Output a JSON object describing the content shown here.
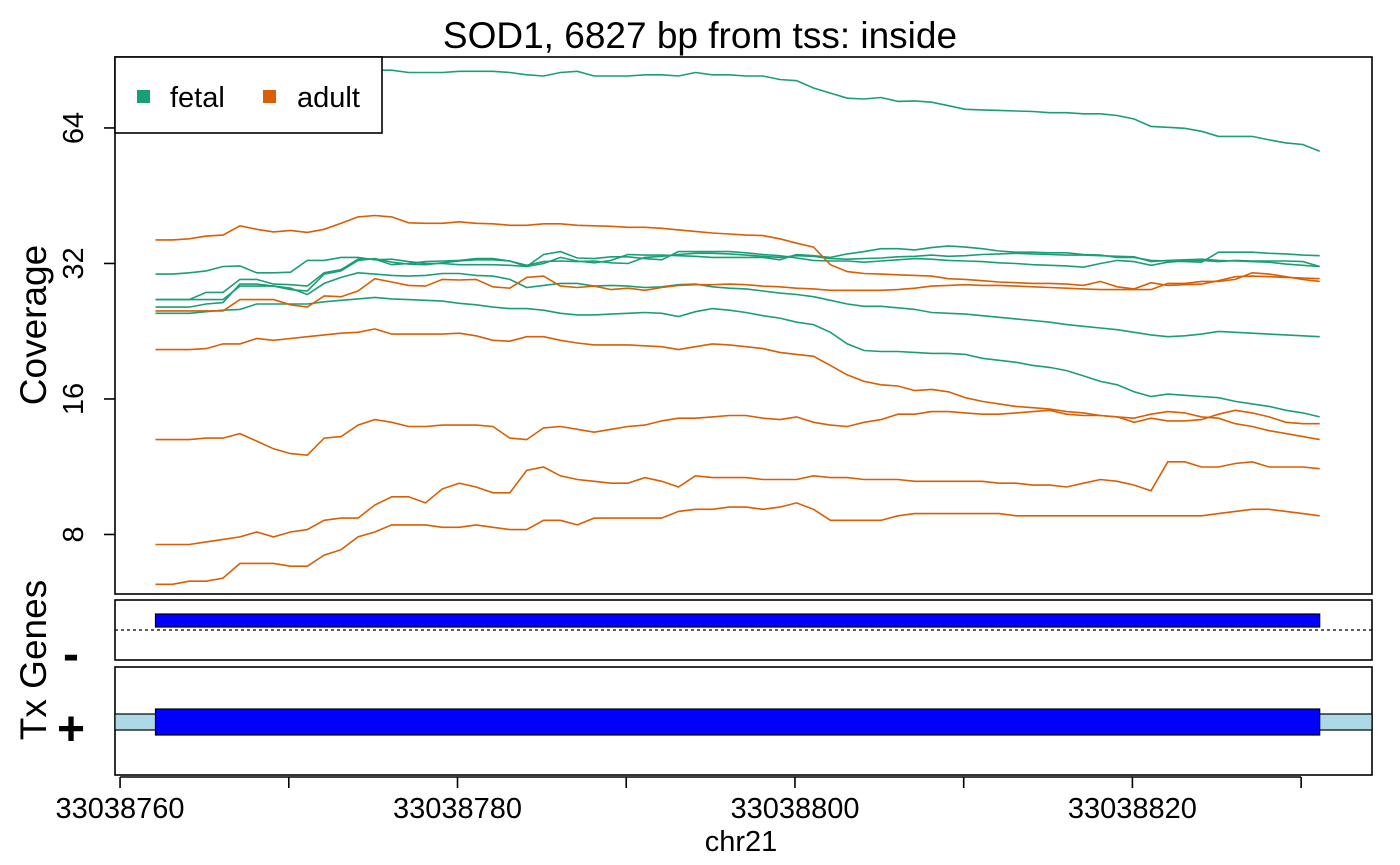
{
  "chart_data": {
    "type": "line",
    "title": "SOD1, 6827 bp from tss: inside",
    "ylabel": "Coverage",
    "xlabel": "chr21",
    "y_scale": "log2",
    "ylim": [
      5.9,
      92
    ],
    "xlim": [
      33038759.7,
      33038834.2
    ],
    "yticks": [
      8,
      16,
      32,
      64
    ],
    "ytick_labels": [
      "8",
      "16",
      "32",
      "64"
    ],
    "xticks": [
      33038760,
      33038770,
      33038780,
      33038790,
      33038800,
      33038810,
      33038820,
      33038830
    ],
    "xtick_labels": [
      "33038760",
      "",
      "33038780",
      "",
      "33038800",
      "",
      "33038820",
      ""
    ],
    "legend": {
      "position": "top-left",
      "entries": [
        {
          "label": "fetal",
          "color": "#1B9E77"
        },
        {
          "label": "adult",
          "color": "#D95F02"
        }
      ]
    },
    "x": [
      33038762.1,
      33038763.1,
      33038764.1,
      33038765.1,
      33038766.1,
      33038767.1,
      33038768.1,
      33038769.1,
      33038770.1,
      33038771.1,
      33038772.1,
      33038773.1,
      33038774.1,
      33038775.1,
      33038776.1,
      33038777.1,
      33038778.1,
      33038779.1,
      33038780.1,
      33038781.1,
      33038782.1,
      33038783.1,
      33038784.1,
      33038785.1,
      33038786.1,
      33038787.1,
      33038788.1,
      33038789.1,
      33038790.1,
      33038791.1,
      33038792.1,
      33038793.1,
      33038794.1,
      33038795.1,
      33038796.1,
      33038797.1,
      33038798.1,
      33038799.1,
      33038800.1,
      33038801.1,
      33038802.1,
      33038803.1,
      33038804.1,
      33038805.1,
      33038806.1,
      33038807.1,
      33038808.1,
      33038809.1,
      33038810.1,
      33038811.1,
      33038812.1,
      33038813.1,
      33038814.1,
      33038815.1,
      33038816.1,
      33038817.1,
      33038818.1,
      33038819.1,
      33038820.1,
      33038821.1,
      33038822.1,
      33038823.1,
      33038824.1,
      33038825.1,
      33038826.1,
      33038827.1,
      33038828.1,
      33038829.1,
      33038830.1,
      33038831.1
    ],
    "series": [
      {
        "group": "fetal",
        "color": "#1B9E77",
        "values": [
          88,
          88,
          88,
          88,
          88,
          88,
          88,
          88,
          88,
          88,
          88,
          88,
          88,
          86,
          86,
          85,
          85,
          85,
          85.5,
          85.5,
          85.5,
          85,
          84,
          83.5,
          85,
          85.5,
          83.5,
          83.5,
          83.5,
          84,
          84,
          83.5,
          85,
          84,
          84,
          83.5,
          83.5,
          82,
          81.5,
          78.5,
          76.5,
          74.5,
          74.2,
          74.8,
          73.3,
          73.5,
          73,
          71.7,
          70.4,
          70.2,
          70,
          69.8,
          69.6,
          69.2,
          69.2,
          68.8,
          68.8,
          68.2,
          67,
          64.5,
          64.2,
          63.9,
          62.9,
          61.3,
          61.3,
          61.3,
          60.2,
          59.3,
          58.8,
          56.8
        ]
      },
      {
        "group": "fetal",
        "color": "#1B9E77",
        "values": [
          30.3,
          30.3,
          30.5,
          30.8,
          31.5,
          31.6,
          30.5,
          30.5,
          30.6,
          32.5,
          32.5,
          33,
          33,
          32.6,
          32.7,
          32.3,
          32,
          32,
          31.8,
          31.8,
          31.8,
          31.7,
          31.5,
          32,
          33,
          32.4,
          32.1,
          32.5,
          33.5,
          33.4,
          33.4,
          33.3,
          33.2,
          33,
          33,
          33,
          33,
          32.6,
          33.5,
          33.3,
          33,
          33.6,
          34,
          34.5,
          34.5,
          34.3,
          34.7,
          35,
          34.8,
          34.5,
          34.1,
          33.9,
          33.9,
          33.8,
          33.8,
          33.5,
          33.4,
          33,
          33,
          32.5,
          32.4,
          32.3,
          32.2,
          33.9,
          33.9,
          33.9,
          33.7,
          33.6,
          33.4,
          33.3
        ]
      },
      {
        "group": "fetal",
        "color": "#1B9E77",
        "values": [
          25.6,
          25.6,
          25.6,
          26,
          26.2,
          28.8,
          28.8,
          28.5,
          28,
          27.8,
          30.3,
          30.8,
          32.5,
          32.8,
          32.2,
          31.9,
          31.8,
          32.1,
          32.4,
          32.6,
          32.6,
          32.4,
          31.7,
          32.3,
          32.4,
          32.3,
          32.4,
          32.1,
          32,
          33,
          33.2,
          33.5,
          33.7,
          33.7,
          33.6,
          33.4,
          33.2,
          33,
          33.3,
          33.2,
          32.8,
          32.7,
          32.8,
          32.9,
          33.1,
          33.2,
          33.4,
          33.2,
          33.3,
          33.5,
          33.6,
          33.7,
          33.6,
          33.5,
          33.4,
          33.4,
          33.3,
          33.2,
          33.1,
          32.3,
          32.5,
          32.6,
          32.7,
          32.5,
          32.4,
          32.3,
          32.2,
          31.9,
          31.7,
          31.5
        ]
      },
      {
        "group": "fetal",
        "color": "#1B9E77",
        "values": [
          26.6,
          26.6,
          26.6,
          27.6,
          27.6,
          29.5,
          29.5,
          28.8,
          28.7,
          28.5,
          30.5,
          31,
          32.7,
          32.7,
          31.8,
          32,
          32.3,
          32.4,
          32.5,
          32.8,
          32.8,
          32.4,
          31.5,
          33.5,
          34,
          32.9,
          32.8,
          33.1,
          33.1,
          32.8,
          32.6,
          34,
          34,
          34,
          34,
          33.8,
          33.5,
          33.3,
          32.9,
          32.5,
          32.4,
          32.4,
          32.2,
          32.4,
          32.6,
          32.8,
          32.7,
          32.5,
          32.4,
          32.3,
          32.1,
          32,
          31.8,
          31.7,
          31.6,
          31.4,
          32,
          32.5,
          32.3,
          31.7,
          32.2,
          32.4,
          32.5,
          32.3,
          32.5,
          32.4,
          32.4,
          32.4,
          32.3,
          31.5
        ]
      },
      {
        "group": "fetal",
        "color": "#1B9E77",
        "values": [
          26.6,
          26.6,
          26.6,
          26.6,
          26.6,
          28.5,
          28.5,
          28.5,
          28.2,
          27.3,
          28.9,
          29.8,
          30.5,
          30.3,
          30.1,
          30,
          30.1,
          30.4,
          30.4,
          30.1,
          30,
          29.5,
          28.3,
          28.6,
          28.9,
          28.9,
          28.5,
          28.6,
          28.5,
          28.3,
          28.4,
          28.7,
          28.8,
          28.4,
          28.2,
          28.1,
          27.8,
          27.5,
          27.3,
          27,
          26.5,
          26,
          25.7,
          25.7,
          25.5,
          25.3,
          24.9,
          24.8,
          24.7,
          24.5,
          24.3,
          24.1,
          23.9,
          23.7,
          23.4,
          23.2,
          23,
          22.8,
          22.5,
          22.2,
          22,
          22.1,
          22.3,
          22.6,
          22.5,
          22.4,
          22.3,
          22.2,
          22.1,
          22
        ]
      },
      {
        "group": "fetal",
        "color": "#1B9E77",
        "values": [
          24.8,
          24.8,
          24.8,
          25,
          25.2,
          25.3,
          26,
          26,
          26,
          26,
          26.3,
          26.5,
          26.7,
          26.9,
          26.7,
          26.6,
          26.5,
          26.4,
          26.1,
          25.9,
          25.6,
          25.4,
          25.4,
          25.2,
          24.8,
          24.6,
          24.6,
          24.7,
          24.8,
          24.9,
          24.8,
          24.4,
          25,
          25.4,
          25.2,
          24.9,
          24.5,
          24.2,
          23.7,
          23.4,
          22.5,
          21.2,
          20.5,
          20.4,
          20.4,
          20.3,
          20.2,
          20.2,
          20.1,
          19.7,
          19.5,
          19.3,
          19,
          18.8,
          18.5,
          18,
          17.5,
          17.2,
          16.6,
          16.2,
          16.4,
          16.3,
          16.2,
          16.1,
          15.8,
          15.6,
          15.4,
          15.1,
          14.9,
          14.6
        ]
      },
      {
        "group": "adult",
        "color": "#D95F02",
        "values": [
          36.1,
          36.1,
          36.3,
          36.8,
          37,
          38.8,
          38.1,
          37.6,
          37.9,
          37.5,
          38.1,
          39.3,
          40.6,
          40.9,
          40.6,
          39.4,
          39.3,
          39.3,
          39.6,
          39.3,
          39.2,
          38.9,
          38.9,
          39.2,
          39.2,
          38.9,
          38.8,
          38.7,
          38.5,
          38.5,
          38.3,
          38,
          37.7,
          37.4,
          37.2,
          37,
          36.9,
          36.3,
          35.5,
          34.8,
          31.8,
          30.7,
          30.4,
          30.3,
          30.2,
          30.1,
          30,
          29.6,
          29.5,
          29.3,
          29.1,
          29,
          28.9,
          28.9,
          28.8,
          28.6,
          29.2,
          28.4,
          28.1,
          29,
          28.6,
          28.7,
          28.8,
          29.3,
          29.9,
          30,
          29.9,
          29.8,
          29.7,
          29.6
        ]
      },
      {
        "group": "adult",
        "color": "#D95F02",
        "values": [
          25.1,
          25.1,
          25.1,
          25.1,
          25.1,
          26.6,
          26.6,
          26.6,
          25.9,
          25.6,
          27.1,
          27,
          27.8,
          29.6,
          29.1,
          28.6,
          28.5,
          29.5,
          29.4,
          29.5,
          28.4,
          28.2,
          29.8,
          30,
          28.5,
          28.3,
          28.5,
          28,
          28.2,
          27.9,
          28.3,
          28.6,
          28.7,
          28.7,
          28.8,
          28.7,
          28.5,
          28.4,
          28.2,
          28.1,
          27.9,
          27.9,
          27.9,
          27.9,
          28,
          28.2,
          28.5,
          28.6,
          28.7,
          28.6,
          28.6,
          28.5,
          28.4,
          28.3,
          28.2,
          28.1,
          28,
          28,
          28,
          28,
          28.9,
          28.9,
          29.2,
          29.2,
          29.5,
          30.5,
          30.3,
          29.9,
          29.5,
          29.2
        ]
      },
      {
        "group": "adult",
        "color": "#D95F02",
        "values": [
          20.6,
          20.6,
          20.6,
          20.7,
          21.2,
          21.2,
          21.8,
          21.6,
          21.8,
          22,
          22.2,
          22.4,
          22.5,
          22.9,
          22.3,
          22.3,
          22.3,
          22.3,
          22.4,
          22.1,
          21.6,
          21.5,
          22,
          22,
          21.6,
          21.3,
          21.1,
          21.1,
          21.1,
          21,
          20.9,
          20.6,
          20.9,
          21.2,
          21.1,
          20.9,
          20.7,
          20.3,
          20.1,
          19.9,
          19,
          18.1,
          17.5,
          17.2,
          17.1,
          16.7,
          16.8,
          16.6,
          16.1,
          15.8,
          15.6,
          15.4,
          15.3,
          15.2,
          15,
          14.9,
          14.7,
          14.6,
          14.5,
          14.8,
          15,
          14.9,
          14.6,
          14.5,
          14.1,
          13.9,
          13.6,
          13.4,
          13.2,
          13
        ]
      },
      {
        "group": "adult",
        "color": "#D95F02",
        "values": [
          13,
          13,
          13,
          13.1,
          13.1,
          13.4,
          12.9,
          12.4,
          12.1,
          12,
          13.1,
          13.2,
          14,
          14.4,
          14.2,
          13.9,
          13.9,
          14,
          14,
          14,
          13.9,
          13.1,
          13,
          13.8,
          13.9,
          13.7,
          13.5,
          13.7,
          13.9,
          14,
          14.3,
          14.5,
          14.5,
          14.6,
          14.7,
          14.7,
          14.5,
          14.4,
          14.6,
          14.2,
          14.0,
          13.9,
          14.2,
          14.4,
          14.8,
          14.8,
          15,
          15,
          14.9,
          14.8,
          14.8,
          14.9,
          15,
          15.1,
          14.8,
          14.7,
          14.7,
          14.6,
          14.2,
          14.5,
          14.3,
          14.3,
          14.4,
          14.8,
          15.1,
          14.9,
          14.6,
          14.2,
          14.1,
          14.1
        ]
      },
      {
        "group": "adult",
        "color": "#D95F02",
        "values": [
          7.6,
          7.6,
          7.6,
          7.7,
          7.8,
          7.9,
          8.1,
          7.9,
          8.1,
          8.2,
          8.6,
          8.7,
          8.7,
          9.3,
          9.7,
          9.7,
          9.4,
          10.1,
          10.4,
          10.2,
          9.9,
          9.9,
          11.1,
          11.3,
          10.8,
          10.6,
          10.5,
          10.4,
          10.4,
          10.7,
          10.5,
          10.2,
          10.8,
          10.7,
          10.7,
          10.7,
          10.6,
          10.6,
          10.6,
          10.8,
          10.7,
          10.7,
          10.6,
          10.6,
          10.6,
          10.5,
          10.5,
          10.5,
          10.5,
          10.5,
          10.4,
          10.4,
          10.3,
          10.3,
          10.2,
          10.4,
          10.6,
          10.5,
          10.3,
          10,
          11.6,
          11.6,
          11.3,
          11.3,
          11.5,
          11.6,
          11.3,
          11.3,
          11.3,
          11.2
        ]
      },
      {
        "group": "adult",
        "color": "#D95F02",
        "values": [
          6.2,
          6.2,
          6.3,
          6.3,
          6.4,
          6.9,
          6.9,
          6.9,
          6.8,
          6.8,
          7.2,
          7.4,
          7.9,
          8.1,
          8.4,
          8.4,
          8.4,
          8.3,
          8.3,
          8.4,
          8.3,
          8.2,
          8.2,
          8.6,
          8.6,
          8.4,
          8.7,
          8.7,
          8.7,
          8.7,
          8.7,
          9,
          9.1,
          9.1,
          9.2,
          9.2,
          9.1,
          9.2,
          9.4,
          9.1,
          8.6,
          8.6,
          8.6,
          8.6,
          8.8,
          8.9,
          8.9,
          8.9,
          8.9,
          8.9,
          8.9,
          8.8,
          8.8,
          8.8,
          8.8,
          8.8,
          8.8,
          8.8,
          8.8,
          8.8,
          8.8,
          8.8,
          8.8,
          8.9,
          9,
          9.1,
          9.1,
          9,
          8.9,
          8.8
        ]
      }
    ]
  },
  "tracks": {
    "track_label": "Tx Genes",
    "minus_strand_label": "-",
    "plus_strand_label": "+",
    "feature_start": 33038762.1,
    "feature_end": 33038831.1,
    "feature_color": "#0000FF",
    "utr_color": "#ADD8E6"
  }
}
